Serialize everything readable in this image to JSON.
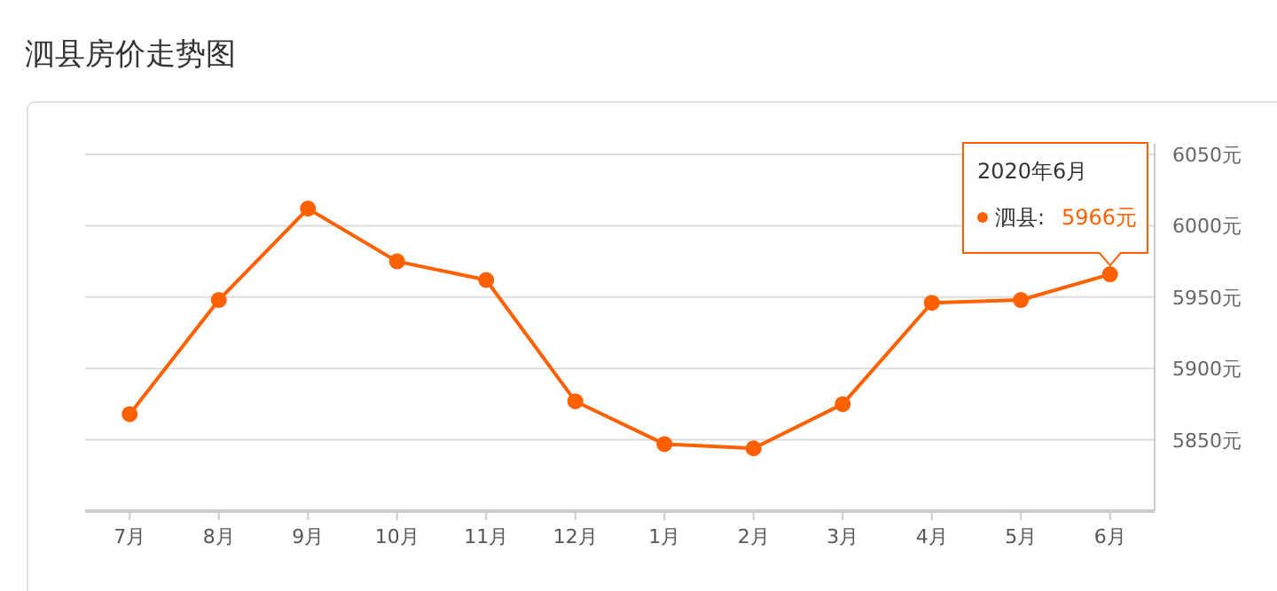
{
  "chart_data": {
    "type": "line",
    "title": "泗县房价走势图",
    "categories": [
      "7月",
      "8月",
      "9月",
      "10月",
      "11月",
      "12月",
      "1月",
      "2月",
      "3月",
      "4月",
      "5月",
      "6月"
    ],
    "series": [
      {
        "name": "泗县:",
        "color": "#ff6000",
        "values": [
          5868,
          5948,
          6012,
          5975,
          5962,
          5877,
          5847,
          5844,
          5875,
          5946,
          5948,
          5966
        ],
        "value_labels": [
          null,
          null,
          null,
          null,
          null,
          null,
          null,
          null,
          null,
          null,
          null,
          "5966元"
        ]
      }
    ],
    "annotations": [
      "2020年6月"
    ],
    "ylim": [
      5800,
      6050
    ],
    "yticks": [
      {
        "value": 5850,
        "label": "5850元"
      },
      {
        "value": 5900,
        "label": "5900元"
      },
      {
        "value": 5950,
        "label": "5950元"
      },
      {
        "value": 6000,
        "label": "6000元"
      },
      {
        "value": 6050,
        "label": "6050元"
      }
    ],
    "grid": "y",
    "legend": "top right",
    "marker": "circle",
    "line_style": "solid"
  }
}
